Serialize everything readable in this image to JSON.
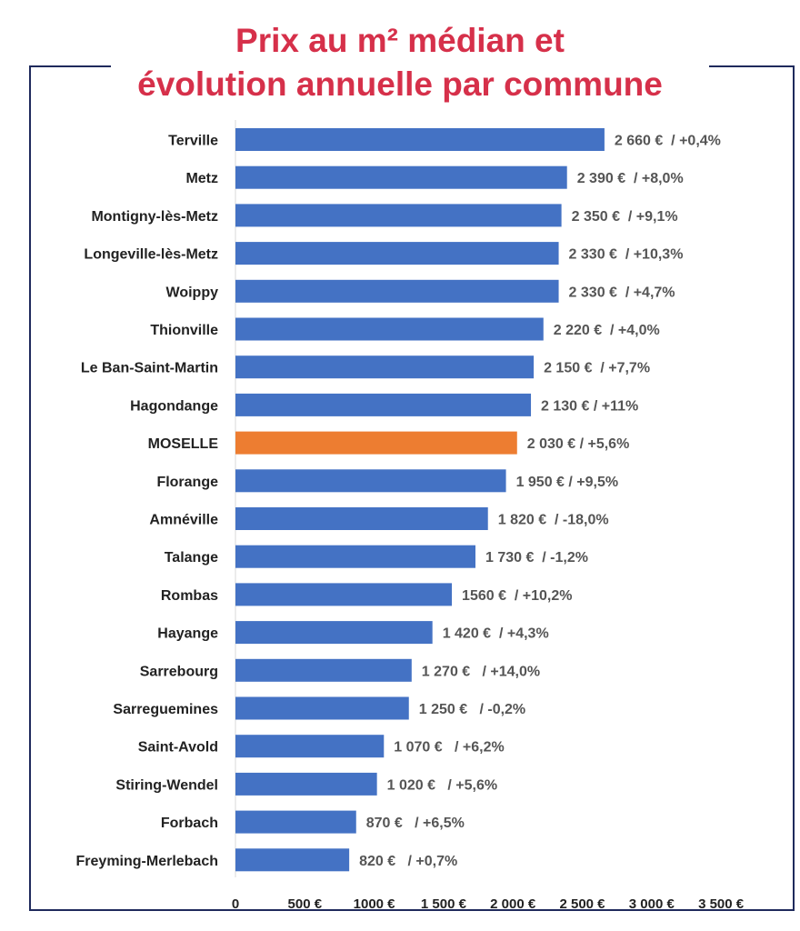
{
  "title": {
    "line1": "Prix au m² médian et",
    "line2": "évolution annuelle par commune"
  },
  "colors": {
    "title": "#d6304a",
    "bar": "#4472c4",
    "highlight": "#ed7d31",
    "frame": "#1f2a5c"
  },
  "chart_data": {
    "type": "bar",
    "orientation": "horizontal",
    "title": "Prix au m² médian et évolution annuelle par commune",
    "xlim": [
      0,
      3500
    ],
    "x_ticks": [
      0,
      500,
      1000,
      1500,
      2000,
      2500,
      3000,
      3500
    ],
    "x_tick_labels": [
      "0",
      "500 €",
      "1000 €",
      "1 500 €",
      "2 000 €",
      "2 500 €",
      "3 000 €",
      "3 500 €"
    ],
    "grid": false,
    "legend": "none",
    "highlight_category": "MOSELLE",
    "categories": [
      "Terville",
      "Metz",
      "Montigny-lès-Metz",
      "Longeville-lès-Metz",
      "Woippy",
      "Thionville",
      "Le Ban-Saint-Martin",
      "Hagondange",
      "MOSELLE",
      "Florange",
      "Amnéville",
      "Talange",
      "Rombas",
      "Hayange",
      "Sarrebourg",
      "Sarreguemines",
      "Saint-Avold",
      "Stiring-Wendel",
      "Forbach",
      "Freyming-Merlebach"
    ],
    "values": [
      2660,
      2390,
      2350,
      2330,
      2330,
      2220,
      2150,
      2130,
      2030,
      1950,
      1820,
      1730,
      1560,
      1420,
      1270,
      1250,
      1070,
      1020,
      870,
      820
    ],
    "data_labels": [
      "2 660 €  / +0,4%",
      "2 390 €  / +8,0%",
      "2 350 €  / +9,1%",
      "2 330 €  / +10,3%",
      "2 330 €  / +4,7%",
      "2 220 €  / +4,0%",
      "2 150 €  / +7,7%",
      "2 130 € / +11%",
      "2 030 € / +5,6%",
      "1 950 € / +9,5%",
      "1 820 €  / -18,0%",
      "1 730 €  / -1,2%",
      "1560 €  / +10,2%",
      "1 420 €  / +4,3%",
      "1 270 €   / +14,0%",
      "1 250 €   / -0,2%",
      "1 070 €   / +6,2%",
      "1 020 €   / +5,6%",
      "870 €   / +6,5%",
      "820 €   / +0,7%"
    ]
  }
}
